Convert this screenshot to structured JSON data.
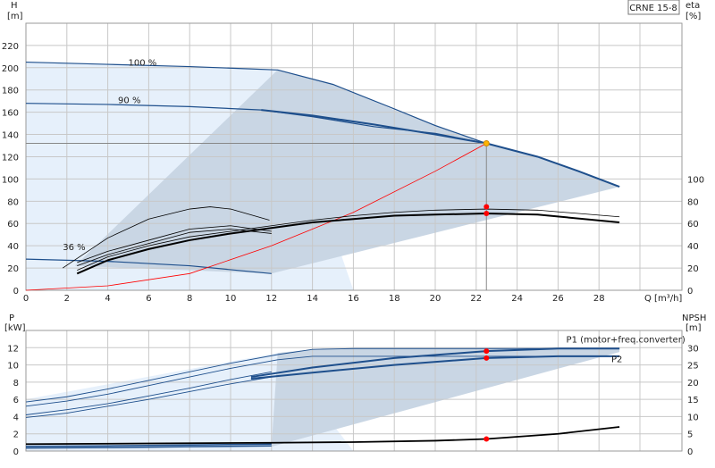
{
  "chart_data": [
    {
      "type": "line",
      "panel": "head",
      "badge": "CRNE 15-8",
      "x": {
        "label": "Q [m³/h]",
        "range": [
          0,
          30
        ],
        "ticks": [
          0,
          2,
          4,
          6,
          8,
          10,
          12,
          14,
          16,
          18,
          20,
          22,
          24,
          26,
          28
        ]
      },
      "y_left": {
        "label_top": "H",
        "label_unit": "[m]",
        "range": [
          0,
          240
        ],
        "ticks": [
          0,
          20,
          40,
          60,
          80,
          100,
          120,
          140,
          160,
          180,
          200,
          220
        ]
      },
      "y_right": {
        "label_top": "eta",
        "label_unit": "[%]",
        "ticks": [
          0,
          20,
          40,
          60,
          80,
          100
        ]
      },
      "grid": true,
      "annotations": [
        {
          "text": "100 %",
          "x": 5,
          "y": 202
        },
        {
          "text": "90 %",
          "x": 4.5,
          "y": 168
        },
        {
          "text": "36 %",
          "x": 1.8,
          "y": 36
        }
      ],
      "colors": {
        "curve": "#1e4f8c",
        "fill_light": "#e6f0fb",
        "fill_dark": "#c9d6e4",
        "eta": "#000000",
        "system": "#ff0000",
        "duty": "#ffb400",
        "marker": "#ff0000",
        "duty_line": "#888888"
      },
      "region_light": [
        [
          0,
          205
        ],
        [
          12.3,
          198
        ],
        [
          16,
          0
        ],
        [
          0,
          0
        ]
      ],
      "region_dark": [
        [
          12.3,
          198
        ],
        [
          15,
          185
        ],
        [
          18,
          162
        ],
        [
          22.5,
          132
        ],
        [
          25,
          120
        ],
        [
          29,
          93
        ],
        [
          12,
          15
        ],
        [
          2.4,
          22
        ]
      ],
      "series": [
        {
          "name": "",
          "role": "hq",
          "x": [
            0,
            4,
            8,
            12.3,
            15,
            18,
            20,
            22.5,
            25,
            27,
            29
          ],
          "y": [
            205,
            203,
            201,
            198,
            185,
            163,
            148,
            132,
            120,
            107,
            93
          ]
        },
        {
          "name": "",
          "role": "hq",
          "x": [
            0,
            4,
            8,
            11.5,
            14,
            17,
            20,
            22.5
          ],
          "y": [
            168,
            167,
            165,
            162,
            156,
            147,
            141,
            132
          ]
        },
        {
          "name": "",
          "role": "hq",
          "x": [
            0,
            4,
            8,
            12
          ],
          "y": [
            28,
            26,
            22,
            15
          ]
        },
        {
          "name": "",
          "role": "hq_main",
          "x": [
            11.5,
            14,
            17,
            20,
            22.5,
            25,
            27,
            29
          ],
          "y": [
            162,
            157,
            149,
            140,
            132,
            120,
            107,
            93
          ]
        },
        {
          "name": "",
          "role": "system",
          "x": [
            0,
            4,
            8,
            12,
            16,
            20,
            22.5
          ],
          "y": [
            0,
            4,
            15,
            40,
            70,
            107,
            132
          ]
        },
        {
          "name": "",
          "role": "eta",
          "x": [
            1.8,
            4,
            6,
            8,
            9,
            10,
            11.9
          ],
          "y": [
            20,
            47,
            64,
            73,
            75,
            73,
            63
          ]
        },
        {
          "name": "",
          "role": "eta",
          "x": [
            2.5,
            4,
            6,
            8,
            10,
            12
          ],
          "y": [
            25,
            35,
            45,
            55,
            58,
            53
          ]
        },
        {
          "name": "",
          "role": "eta",
          "x": [
            2.5,
            4,
            6,
            8,
            10,
            12
          ],
          "y": [
            22,
            32,
            42,
            52,
            55,
            51
          ]
        },
        {
          "name": "",
          "role": "eta",
          "x": [
            2.5,
            4,
            6,
            8,
            10,
            12,
            14,
            16,
            18,
            20,
            22.5,
            25,
            29
          ],
          "y": [
            18,
            30,
            40,
            48,
            53,
            58,
            63,
            67,
            70,
            72,
            73,
            72,
            66
          ]
        },
        {
          "name": "",
          "role": "eta_main",
          "x": [
            2.5,
            4,
            6,
            8,
            10,
            12,
            14,
            16,
            18,
            20,
            22.5,
            25,
            29
          ],
          "y": [
            15,
            27,
            37,
            45,
            51,
            56,
            61,
            64,
            67,
            68,
            69,
            68,
            61
          ]
        }
      ],
      "markers": [
        {
          "role": "duty",
          "x": 22.5,
          "y": 132
        },
        {
          "role": "marker",
          "x": 22.5,
          "y": 75
        },
        {
          "role": "marker",
          "x": 22.5,
          "y": 69
        }
      ]
    },
    {
      "type": "line",
      "panel": "power",
      "x": {
        "label": "",
        "range": [
          0,
          30
        ],
        "ticks": [
          0,
          2,
          4,
          6,
          8,
          10,
          12,
          14,
          16,
          18,
          20,
          22,
          24,
          26,
          28
        ]
      },
      "y_left": {
        "label_top": "P",
        "label_unit": "[kW]",
        "range": [
          0,
          14
        ],
        "ticks": [
          0,
          2,
          4,
          6,
          8,
          10,
          12
        ]
      },
      "y_right": {
        "label_top": "NPSH",
        "label_unit": "[m]",
        "range": [
          0,
          35
        ],
        "ticks": [
          0,
          5,
          10,
          15,
          20,
          25,
          30
        ]
      },
      "grid": true,
      "annotations": [
        {
          "text": "P1 (motor+freq.converter)",
          "x": 26.4,
          "y": 12.6
        },
        {
          "text": "P2",
          "x": 28.6,
          "y": 10.3
        }
      ],
      "region_light": [
        [
          0,
          6
        ],
        [
          12.3,
          11.4
        ],
        [
          16,
          0
        ],
        [
          0,
          0
        ]
      ],
      "region_dark": [
        [
          12.3,
          11.4
        ],
        [
          14.5,
          11.9
        ],
        [
          29,
          11.9
        ],
        [
          29,
          11.5
        ],
        [
          12,
          0.5
        ]
      ],
      "series": [
        {
          "name": "",
          "role": "p_main",
          "x": [
            11,
            14,
            18,
            22.5,
            26,
            29
          ],
          "y": [
            8.6,
            9.7,
            10.8,
            11.6,
            11.9,
            11.9
          ]
        },
        {
          "name": "",
          "role": "p_main",
          "x": [
            11,
            14,
            18,
            22.5,
            26,
            29
          ],
          "y": [
            8.4,
            9.1,
            10.0,
            10.8,
            11.0,
            11.0
          ]
        },
        {
          "name": "",
          "role": "p_thin",
          "x": [
            0,
            2,
            4,
            6,
            8,
            10,
            12.3,
            14,
            16,
            20,
            24,
            29
          ],
          "y": [
            5.7,
            6.3,
            7.2,
            8.2,
            9.2,
            10.2,
            11.2,
            11.8,
            11.9,
            11.9,
            11.9,
            11.9
          ]
        },
        {
          "name": "",
          "role": "p_thin",
          "x": [
            0,
            2,
            4,
            6,
            8,
            10,
            12.3,
            14,
            16,
            20,
            24,
            29
          ],
          "y": [
            5.2,
            5.8,
            6.6,
            7.6,
            8.6,
            9.6,
            10.6,
            11.0,
            11.0,
            11.0,
            11.0,
            11.0
          ]
        },
        {
          "name": "",
          "role": "p_thin",
          "x": [
            0,
            2,
            4,
            6,
            8,
            10,
            12
          ],
          "y": [
            4.2,
            4.8,
            5.5,
            6.4,
            7.3,
            8.3,
            9.2
          ]
        },
        {
          "name": "",
          "role": "p_thin",
          "x": [
            0,
            2,
            4,
            6,
            8,
            10,
            12
          ],
          "y": [
            3.9,
            4.4,
            5.2,
            6.0,
            6.9,
            7.8,
            8.6
          ]
        },
        {
          "name": "",
          "role": "p_low",
          "x": [
            0,
            4,
            8,
            12
          ],
          "y": [
            0.55,
            0.6,
            0.7,
            0.8
          ]
        },
        {
          "name": "",
          "role": "p_low",
          "x": [
            0,
            4,
            8,
            12
          ],
          "y": [
            0.35,
            0.4,
            0.5,
            0.6
          ]
        },
        {
          "name": "",
          "role": "npsh",
          "x": [
            0,
            6,
            12,
            16,
            20,
            22.5,
            26,
            29
          ],
          "y": [
            2.0,
            2.2,
            2.4,
            2.6,
            3.0,
            3.5,
            5.0,
            7.0
          ]
        }
      ],
      "markers": [
        {
          "role": "marker",
          "x": 22.5,
          "y": 11.6
        },
        {
          "role": "marker",
          "x": 22.5,
          "y": 10.8
        },
        {
          "role": "marker",
          "x": 22.5,
          "y": 1.4
        }
      ]
    }
  ]
}
